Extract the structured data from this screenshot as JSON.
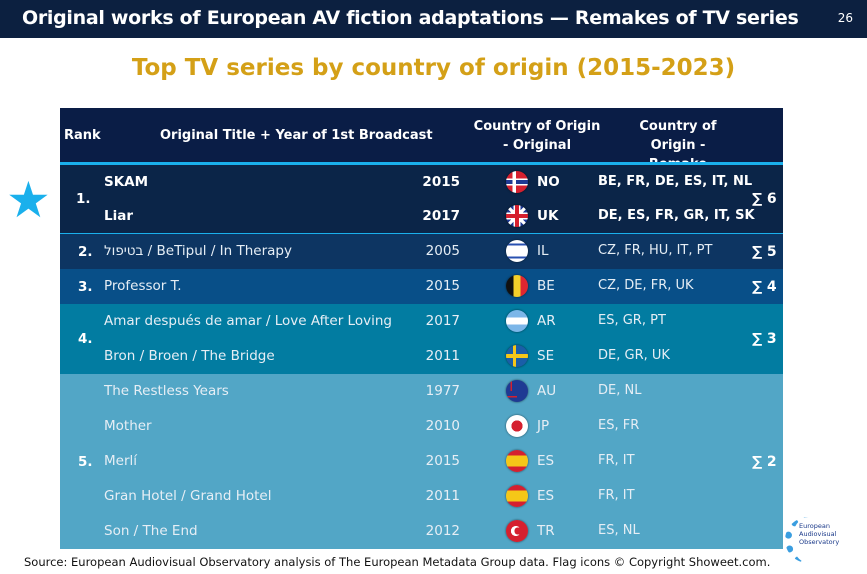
{
  "header": {
    "title": "Original works of European AV fiction adaptations — Remakes of TV series",
    "page": "26"
  },
  "subtitle": "Top TV series by country of origin (2015-2023)",
  "columns": {
    "rank": "Rank",
    "title": "Original Title + Year of 1st Broadcast",
    "origin": "Country of Origin - Original",
    "remake": "Country of Origin - Remake"
  },
  "groups": [
    {
      "rank": "1.",
      "sum": "∑ 6",
      "color": "#0b2548",
      "bold": true,
      "items": [
        {
          "title": "SKAM",
          "year": "2015",
          "flag": "norway-flag",
          "code": "NO",
          "remakes": "BE, FR, DE, ES, IT, NL"
        },
        {
          "title": "Liar",
          "year": "2017",
          "flag": "uk-flag",
          "code": "UK",
          "remakes": "DE, ES, FR, GR, IT, SK"
        }
      ]
    },
    {
      "rank": "2.",
      "sum": "∑ 5",
      "color": "#0d3562",
      "items": [
        {
          "title": "בטיפול / BeTipul / In Therapy",
          "year": "2005",
          "flag": "israel-flag",
          "code": "IL",
          "remakes": "CZ, FR, HU, IT, PT"
        }
      ]
    },
    {
      "rank": "3.",
      "sum": "∑ 4",
      "color": "#084f88",
      "items": [
        {
          "title": "Professor T.",
          "year": "2015",
          "flag": "belgium-flag",
          "code": "BE",
          "remakes": "CZ, DE, FR, UK"
        }
      ]
    },
    {
      "rank": "4.",
      "sum": "∑ 3",
      "color": "#027ca1",
      "items": [
        {
          "title": "Amar después de amar / Love After Loving",
          "year": "2017",
          "flag": "argentina-flag",
          "code": "AR",
          "remakes": "ES, GR, PT"
        },
        {
          "title": "Bron / Broen / The Bridge",
          "year": "2011",
          "flag": "sweden-flag",
          "code": "SE",
          "remakes": "DE, GR, UK"
        }
      ]
    },
    {
      "rank": "5.",
      "sum": "∑ 2",
      "color": "#52a6c6",
      "items": [
        {
          "title": "The Restless Years",
          "year": "1977",
          "flag": "australia-flag",
          "code": "AU",
          "remakes": "DE, NL"
        },
        {
          "title": "Mother",
          "year": "2010",
          "flag": "japan-flag",
          "code": "JP",
          "remakes": "ES, FR"
        },
        {
          "title": "Merlí",
          "year": "2015",
          "flag": "spain-flag",
          "code": "ES",
          "remakes": "FR, IT"
        },
        {
          "title": "Gran Hotel / Grand Hotel",
          "year": "2011",
          "flag": "spain-flag",
          "code": "ES",
          "remakes": "FR, IT"
        },
        {
          "title": "Son / The End",
          "year": "2012",
          "flag": "turkey-flag",
          "code": "TR",
          "remakes": "ES, NL"
        }
      ]
    }
  ],
  "footer": "Source: European Audiovisual Observatory analysis of The European Metadata Group data. Flag icons © Copyright Showeet.com.",
  "logo": "European Audiovisual Observatory",
  "colors": {
    "header": "#0a1d46",
    "accent": "#1ab0ec",
    "gold": "#d4a017"
  }
}
